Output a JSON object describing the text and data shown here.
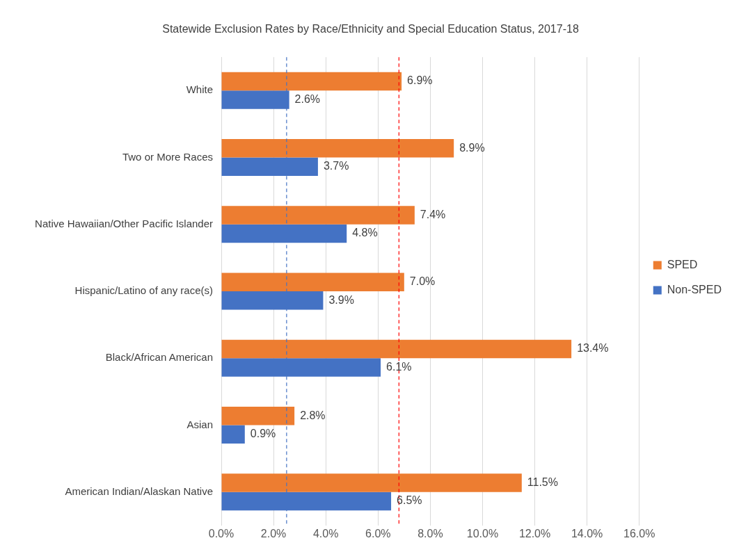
{
  "chart_data": {
    "type": "bar",
    "orientation": "horizontal",
    "title": "Statewide Exclusion Rates by Race/Ethnicity and Special Education Status, 2017-18",
    "categories": [
      "White",
      "Two or More Races",
      "Native Hawaiian/Other Pacific Islander",
      "Hispanic/Latino of any race(s)",
      "Black/African American",
      "Asian",
      "American Indian/Alaskan Native"
    ],
    "series": [
      {
        "name": "SPED",
        "color": "#ed7d31",
        "values": [
          6.9,
          8.9,
          7.4,
          7.0,
          13.4,
          2.8,
          11.5
        ],
        "value_labels": [
          "6.9%",
          "8.9%",
          "7.4%",
          "7.0%",
          "13.4%",
          "2.8%",
          "11.5%"
        ]
      },
      {
        "name": "Non-SPED",
        "color": "#4472c4",
        "values": [
          2.6,
          3.7,
          4.8,
          3.9,
          6.1,
          0.9,
          6.5
        ],
        "value_labels": [
          "2.6%",
          "3.7%",
          "4.8%",
          "3.9%",
          "6.1%",
          "0.9%",
          "6.5%"
        ]
      }
    ],
    "xlim": [
      0,
      16
    ],
    "xticks": [
      {
        "value": 0,
        "label": "0.0%"
      },
      {
        "value": 2,
        "label": "2.0%"
      },
      {
        "value": 4,
        "label": "4.0%"
      },
      {
        "value": 6,
        "label": "6.0%"
      },
      {
        "value": 8,
        "label": "8.0%"
      },
      {
        "value": 10,
        "label": "10.0%"
      },
      {
        "value": 12,
        "label": "12.0%"
      },
      {
        "value": 14,
        "label": "14.0%"
      },
      {
        "value": 16,
        "label": "16.0%"
      }
    ],
    "ref_lines": [
      {
        "axis": "x",
        "value": 2.5,
        "color": "#4472c4",
        "line_style": "dashed"
      },
      {
        "axis": "x",
        "value": 6.8,
        "color": "#ff0000",
        "line_style": "dashed"
      }
    ],
    "grid": "x",
    "legend": "right"
  }
}
